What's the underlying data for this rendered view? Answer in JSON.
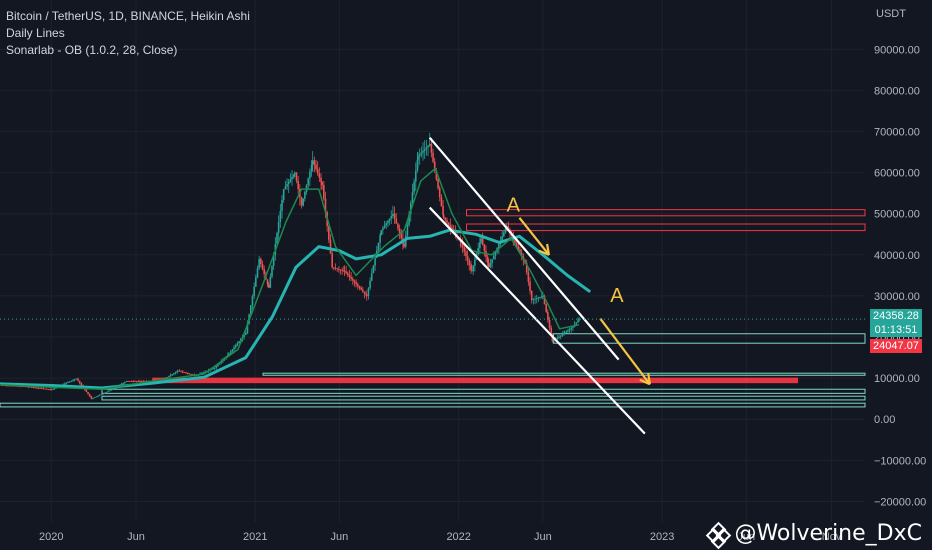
{
  "legend": {
    "symbol_line": "Bitcoin / TetherUS, 1D, BINANCE, Heikin Ashi",
    "line2": "Daily Lines",
    "line3": "Sonarlab - OB (1.0.2, 28, Close)"
  },
  "watermark": {
    "text": "@Wolverine_DxC"
  },
  "badges": {
    "price": "24358.28",
    "countdown": "01:13:51",
    "level": "24047.07"
  },
  "colors": {
    "background": "#131722",
    "up_candle": "#26a69a",
    "down_candle": "#ef5350",
    "ma_fast": "#1b8a4e",
    "ma_slow": "#26b5b0",
    "channel": "#ffffff",
    "arrow": "#f5c542",
    "resistance_zone": "#f23645",
    "support_zone": "#7fd8c6"
  },
  "chart_data": {
    "type": "line",
    "y_axis_unit": "USDT",
    "ylim": [
      -25000,
      102000
    ],
    "y_ticks": [
      -20000,
      -10000,
      0,
      10000,
      20000,
      30000,
      40000,
      50000,
      60000,
      70000,
      80000,
      90000
    ],
    "y_tick_labels": [
      "−20000.00",
      "−10000.00",
      "0.00",
      "10000.00",
      "20000.00",
      "30000.00",
      "40000.00",
      "50000.00",
      "60000.00",
      "70000.00",
      "80000.00",
      "90000.00"
    ],
    "x_range": [
      "2019-10-01",
      "2023-12-31"
    ],
    "x_ticks": [
      {
        "date": "2020-01-01",
        "label": "2020"
      },
      {
        "date": "2020-06-01",
        "label": "Jun"
      },
      {
        "date": "2021-01-01",
        "label": "2021"
      },
      {
        "date": "2021-06-01",
        "label": "Jun"
      },
      {
        "date": "2022-01-01",
        "label": "2022"
      },
      {
        "date": "2022-06-01",
        "label": "Jun"
      },
      {
        "date": "2023-01-01",
        "label": "2023"
      },
      {
        "date": "2023-06-01",
        "label": "Jun"
      },
      {
        "date": "2023-11-01",
        "label": "Nov"
      }
    ],
    "series": [
      {
        "key": "price",
        "points": [
          [
            "2019-10-01",
            8300
          ],
          [
            "2019-11-15",
            8000
          ],
          [
            "2020-01-01",
            7200
          ],
          [
            "2020-02-15",
            9900
          ],
          [
            "2020-03-13",
            5000
          ],
          [
            "2020-04-15",
            7000
          ],
          [
            "2020-05-15",
            9300
          ],
          [
            "2020-07-15",
            9200
          ],
          [
            "2020-08-15",
            11800
          ],
          [
            "2020-09-15",
            10600
          ],
          [
            "2020-10-20",
            12500
          ],
          [
            "2020-11-15",
            16000
          ],
          [
            "2020-12-15",
            21000
          ],
          [
            "2021-01-08",
            39000
          ],
          [
            "2021-01-25",
            32000
          ],
          [
            "2021-02-21",
            56000
          ],
          [
            "2021-03-13",
            60000
          ],
          [
            "2021-03-25",
            52000
          ],
          [
            "2021-04-14",
            63000
          ],
          [
            "2021-05-01",
            57000
          ],
          [
            "2021-05-19",
            37000
          ],
          [
            "2021-06-10",
            36000
          ],
          [
            "2021-07-20",
            30000
          ],
          [
            "2021-08-15",
            46000
          ],
          [
            "2021-09-05",
            50000
          ],
          [
            "2021-09-25",
            42000
          ],
          [
            "2021-10-20",
            64000
          ],
          [
            "2021-11-10",
            67000
          ],
          [
            "2021-12-05",
            49000
          ],
          [
            "2022-01-05",
            43000
          ],
          [
            "2022-01-24",
            36000
          ],
          [
            "2022-02-10",
            44000
          ],
          [
            "2022-02-24",
            37000
          ],
          [
            "2022-03-28",
            47000
          ],
          [
            "2022-04-30",
            38000
          ],
          [
            "2022-05-12",
            29000
          ],
          [
            "2022-06-01",
            30000
          ],
          [
            "2022-06-18",
            19000
          ],
          [
            "2022-07-10",
            21000
          ],
          [
            "2022-07-25",
            22500
          ],
          [
            "2022-08-05",
            24358
          ]
        ]
      },
      {
        "key": "ma_fast",
        "points": [
          [
            "2019-10-01",
            8400
          ],
          [
            "2020-01-01",
            7800
          ],
          [
            "2020-04-01",
            7300
          ],
          [
            "2020-07-01",
            9300
          ],
          [
            "2020-10-01",
            11000
          ],
          [
            "2020-12-01",
            17000
          ],
          [
            "2021-01-15",
            33000
          ],
          [
            "2021-02-25",
            48000
          ],
          [
            "2021-03-25",
            56000
          ],
          [
            "2021-04-25",
            56000
          ],
          [
            "2021-05-25",
            42000
          ],
          [
            "2021-07-01",
            35000
          ],
          [
            "2021-08-20",
            42000
          ],
          [
            "2021-09-25",
            46000
          ],
          [
            "2021-10-25",
            58000
          ],
          [
            "2021-11-20",
            61000
          ],
          [
            "2021-12-20",
            50000
          ],
          [
            "2022-01-25",
            41000
          ],
          [
            "2022-03-01",
            40000
          ],
          [
            "2022-04-05",
            44000
          ],
          [
            "2022-05-10",
            36000
          ],
          [
            "2022-06-10",
            28000
          ],
          [
            "2022-07-01",
            22000
          ],
          [
            "2022-08-05",
            23000
          ]
        ]
      },
      {
        "key": "ma_slow",
        "points": [
          [
            "2019-10-01",
            8600
          ],
          [
            "2020-01-01",
            8200
          ],
          [
            "2020-04-01",
            7600
          ],
          [
            "2020-07-01",
            8800
          ],
          [
            "2020-10-01",
            10200
          ],
          [
            "2020-12-15",
            15000
          ],
          [
            "2021-02-01",
            25000
          ],
          [
            "2021-03-15",
            37000
          ],
          [
            "2021-04-25",
            42000
          ],
          [
            "2021-06-01",
            41000
          ],
          [
            "2021-07-01",
            39000
          ],
          [
            "2021-08-15",
            40000
          ],
          [
            "2021-10-01",
            44000
          ],
          [
            "2021-11-10",
            44500
          ],
          [
            "2021-12-15",
            46000
          ],
          [
            "2022-02-01",
            45000
          ],
          [
            "2022-03-15",
            43000
          ],
          [
            "2022-04-20",
            44500
          ],
          [
            "2022-06-01",
            40000
          ],
          [
            "2022-07-15",
            35000
          ],
          [
            "2022-08-25",
            31000
          ]
        ]
      }
    ],
    "zones": [
      {
        "kind": "resistance",
        "from": "2022-01-15",
        "top": 51000,
        "bottom": 49500
      },
      {
        "kind": "resistance",
        "from": "2022-01-15",
        "top": 47500,
        "bottom": 45900
      },
      {
        "kind": "support",
        "from": "2022-06-20",
        "top": 20800,
        "bottom": 18500
      },
      {
        "kind": "support",
        "from": "2021-01-15",
        "top": 11200,
        "bottom": 10700
      },
      {
        "kind": "resistance_fill",
        "from": "2020-07-01",
        "to": "2023-09-01",
        "top": 10000,
        "bottom": 8900
      },
      {
        "kind": "support",
        "from": "2020-04-01",
        "top": 7300,
        "bottom": 6300
      },
      {
        "kind": "support",
        "from": "2020-04-01",
        "top": 5600,
        "bottom": 4700
      },
      {
        "kind": "support",
        "from": "2019-10-01",
        "top": 3900,
        "bottom": 3000
      }
    ],
    "channel_lines": [
      {
        "from": [
          "2021-11-10",
          68500
        ],
        "to": [
          "2022-10-15",
          14500
        ]
      },
      {
        "from": [
          "2021-11-10",
          51500
        ],
        "to": [
          "2022-12-01",
          -3500
        ]
      }
    ],
    "arrows": [
      {
        "from": [
          "2022-04-20",
          49000
        ],
        "to": [
          "2022-06-12",
          40000
        ]
      },
      {
        "from": [
          "2022-09-12",
          24500
        ],
        "to": [
          "2022-12-10",
          8500
        ]
      }
    ],
    "annotations": [
      {
        "text": "A",
        "at": [
          "2022-03-28",
          50500
        ]
      },
      {
        "text": "A",
        "at": [
          "2022-09-30",
          28500
        ]
      }
    ],
    "horizontal_markers": [
      {
        "value": 24358.28,
        "style": "dotted"
      }
    ]
  }
}
